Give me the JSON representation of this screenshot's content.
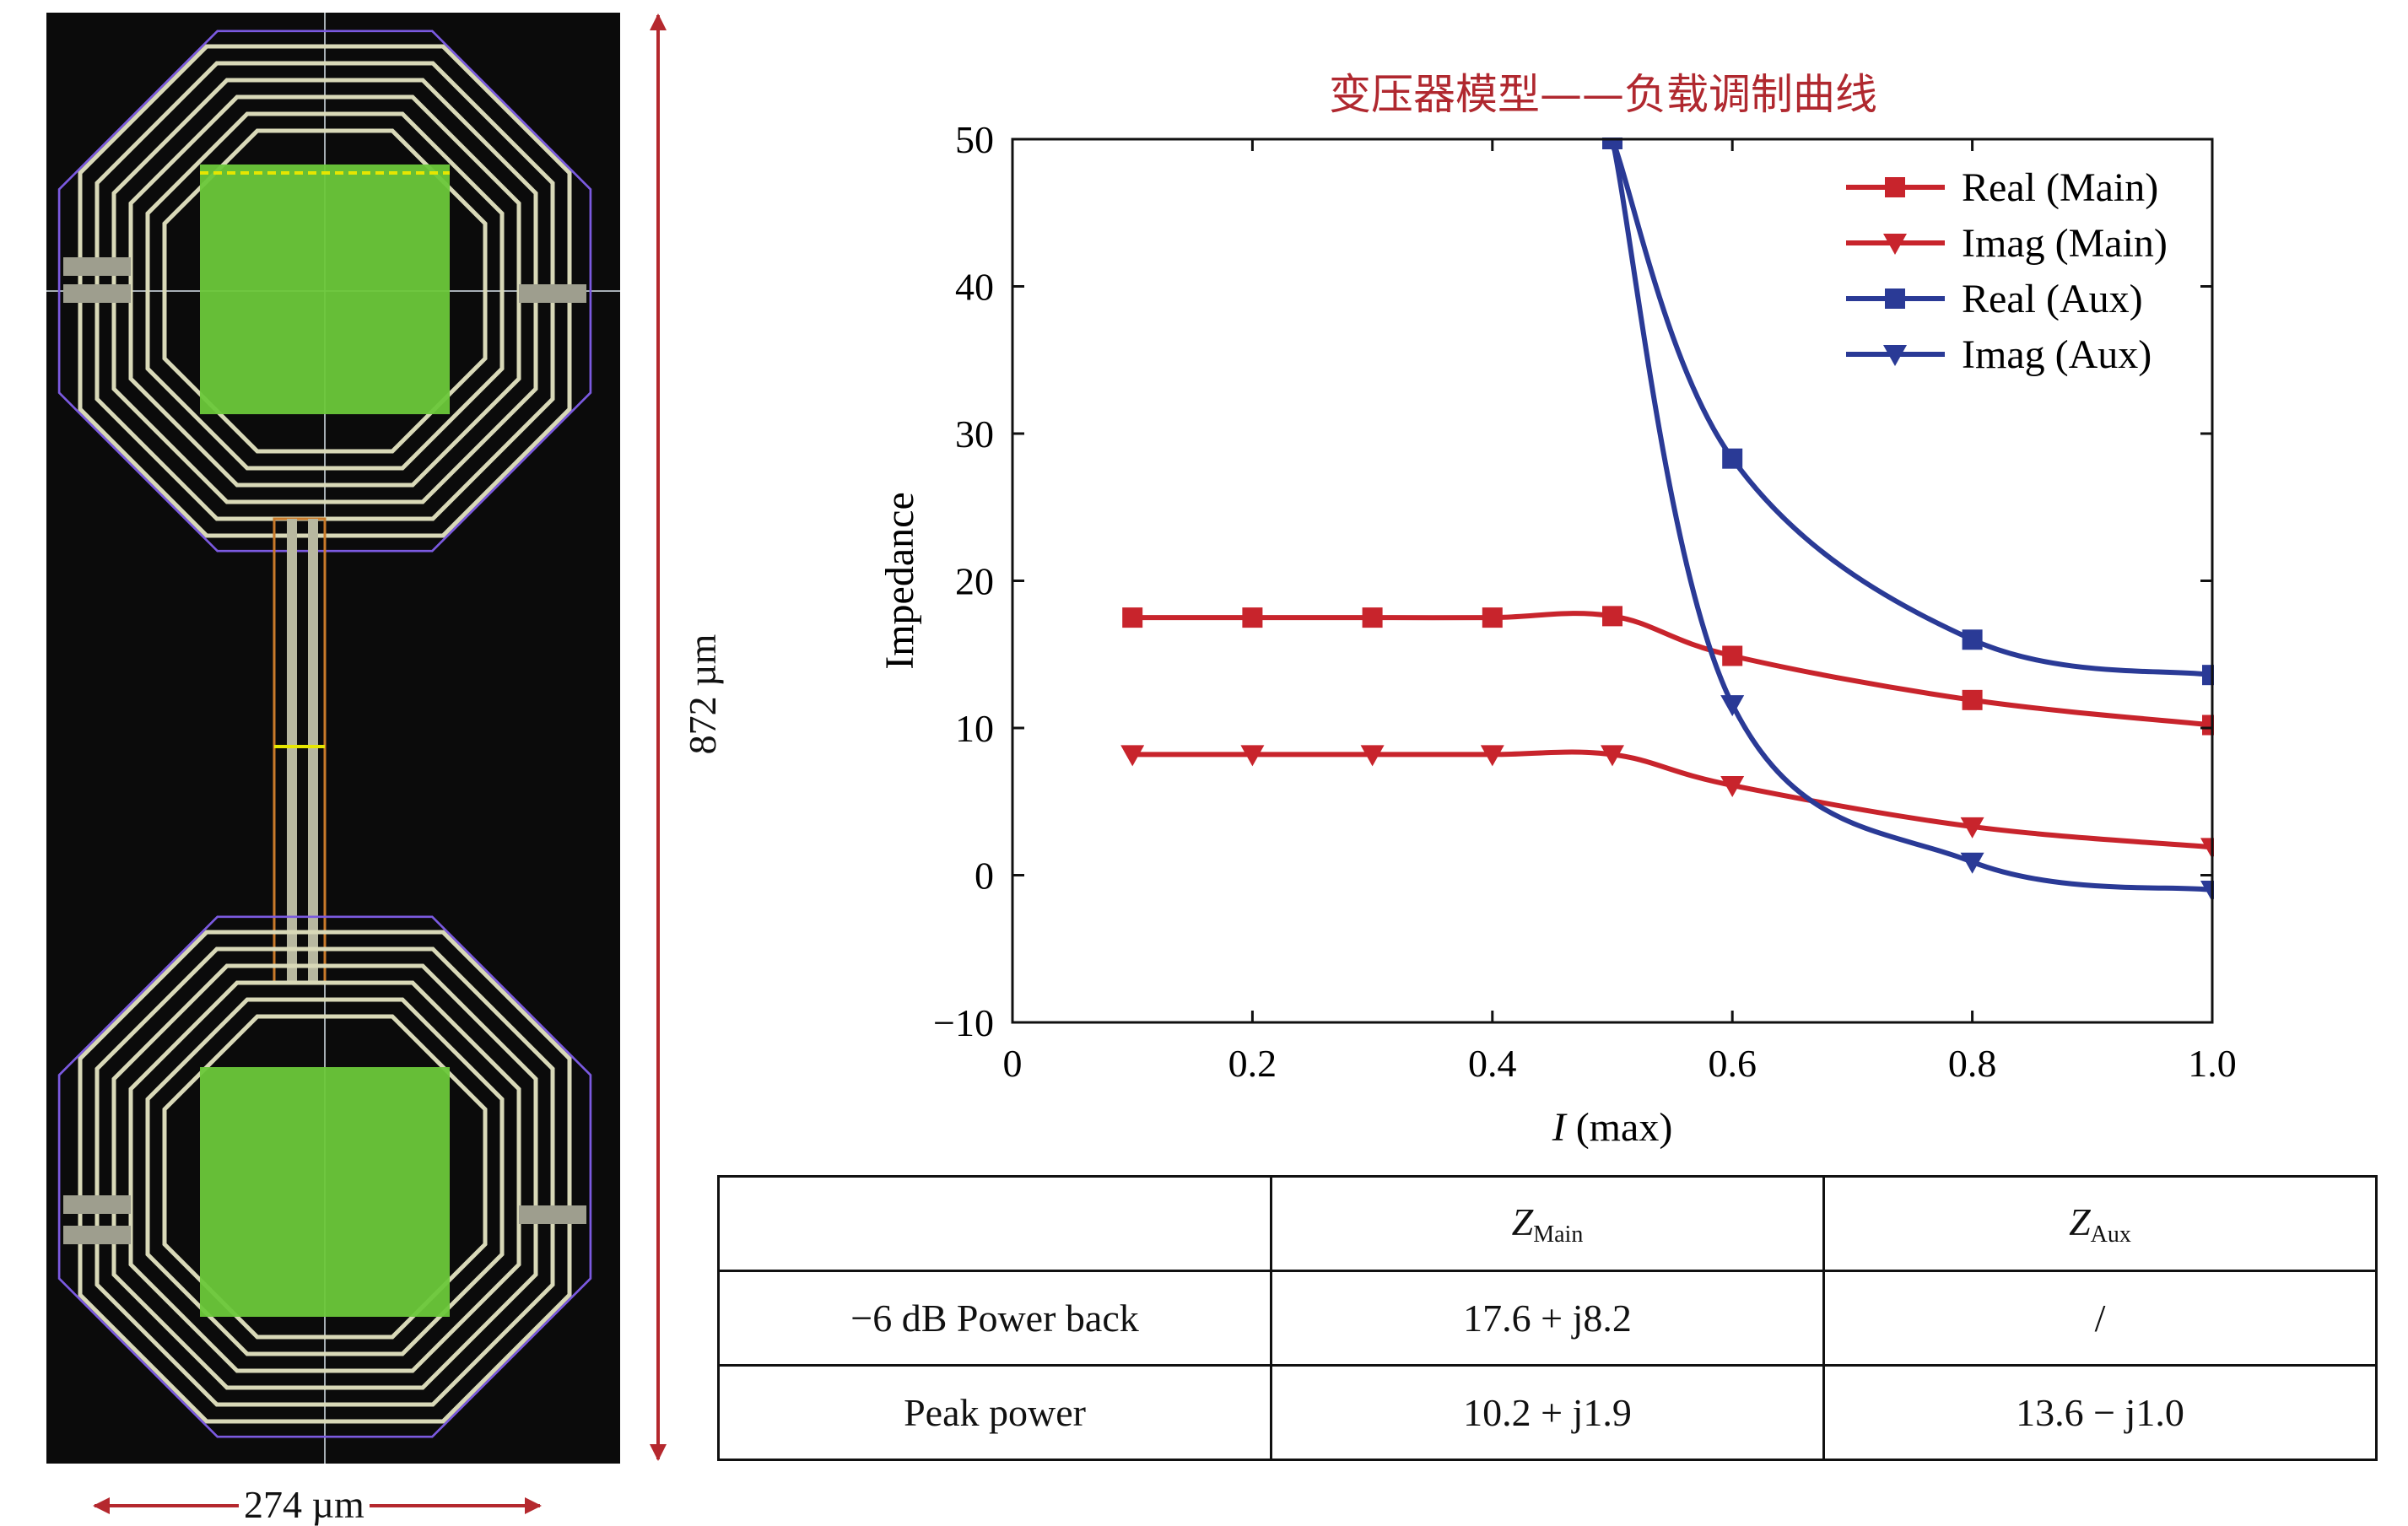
{
  "layout_dims": {
    "height_label": "872 µm",
    "width_label": "274 µm"
  },
  "chart_data": {
    "type": "line",
    "title": "变压器模型——负载调制曲线",
    "xlabel_var": "I",
    "xlabel_unit": " (max)",
    "ylabel": "Impedance",
    "xlim": [
      0,
      1.0
    ],
    "ylim": [
      -10,
      50
    ],
    "xticks": [
      "0",
      "0.2",
      "0.4",
      "0.6",
      "0.8",
      "1.0"
    ],
    "yticks": [
      "−10",
      "0",
      "10",
      "20",
      "30",
      "40",
      "50"
    ],
    "legend_position": "top-right",
    "series": [
      {
        "name": "Real (Main)",
        "color": "#c8242c",
        "marker": "square",
        "x": [
          0.1,
          0.2,
          0.3,
          0.4,
          0.5,
          0.6,
          0.8,
          1.0
        ],
        "y": [
          17.5,
          17.5,
          17.5,
          17.5,
          17.6,
          14.9,
          11.9,
          10.2
        ]
      },
      {
        "name": "Imag (Main)",
        "color": "#c8242c",
        "marker": "triangle-down",
        "x": [
          0.1,
          0.2,
          0.3,
          0.4,
          0.5,
          0.6,
          0.8,
          1.0
        ],
        "y": [
          8.2,
          8.2,
          8.2,
          8.2,
          8.2,
          6.1,
          3.3,
          1.9
        ]
      },
      {
        "name": "Real (Aux)",
        "color": "#2a3a96",
        "marker": "square",
        "x": [
          0.5,
          0.6,
          0.8,
          1.0
        ],
        "y": [
          50.0,
          28.3,
          16.0,
          13.6
        ]
      },
      {
        "name": "Imag (Aux)",
        "color": "#2a3a96",
        "marker": "triangle-down",
        "x": [
          0.5,
          0.6,
          0.8,
          1.0
        ],
        "y": [
          50.0,
          11.6,
          0.9,
          -1.0
        ]
      }
    ]
  },
  "table": {
    "header": {
      "c1": "",
      "c2_var": "Z",
      "c2_sub": "Main",
      "c3_var": "Z",
      "c3_sub": "Aux"
    },
    "rows": [
      {
        "label": "−6 dB Power back",
        "main": "17.6 + j8.2",
        "aux": "/"
      },
      {
        "label": "Peak power",
        "main": "10.2 + j1.9",
        "aux": "13.6 − j1.0"
      }
    ]
  },
  "colors": {
    "layout_bg": "#0b0b0b",
    "metal": "#d9d9b8",
    "pad_green": "#6cc83a",
    "outline_purple": "#6a4bd4",
    "dimension_red": "#b5282e"
  }
}
